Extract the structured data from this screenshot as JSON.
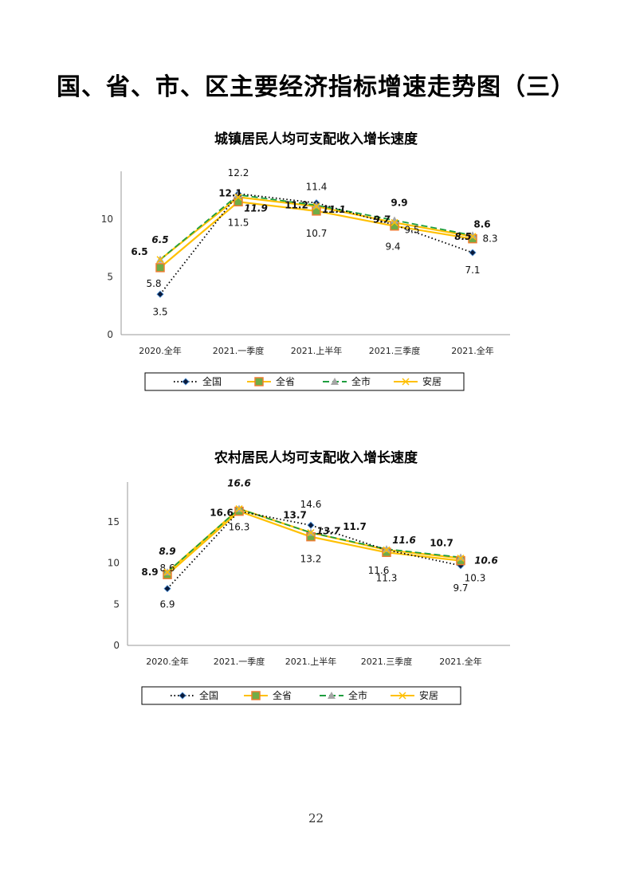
{
  "page_title": "国、省、市、区主要经济指标增速走势图（三）",
  "page_number": "22",
  "chart_data": [
    {
      "type": "line",
      "title": "城镇居民人均可支配收入增长速度",
      "categories": [
        "2020.全年",
        "2021.一季度",
        "2021.上半年",
        "2021.三季度",
        "2021.全年"
      ],
      "ylim": [
        0,
        13
      ],
      "yticks": [
        0,
        5,
        10
      ],
      "legend": "bottom",
      "series": [
        {
          "name": "全国",
          "color": "#000000",
          "style": "dotted",
          "marker": "diamond",
          "values": [
            3.5,
            12.2,
            11.4,
            9.5,
            7.1
          ],
          "labels": [
            "3.5",
            "12.2",
            "11.4",
            "9.5",
            "7.1"
          ],
          "label_style": "plain"
        },
        {
          "name": "全省",
          "color": "#F0A030",
          "style": "solid",
          "marker": "square",
          "values": [
            5.8,
            11.5,
            10.7,
            9.4,
            8.3
          ],
          "labels": [
            "5.8",
            "11.5",
            "10.7",
            "9.4",
            "8.3"
          ],
          "label_style": "plain"
        },
        {
          "name": "全市",
          "color": "#1E9E3E",
          "style": "dashed",
          "marker": "triangle",
          "values": [
            6.5,
            12.1,
            11.2,
            9.9,
            8.6
          ],
          "labels": [
            "6.5",
            "12.1",
            "11.2",
            "9.9",
            "8.6"
          ],
          "label_style": "bold"
        },
        {
          "name": "安居",
          "color": "#FFC000",
          "style": "solid",
          "marker": "x",
          "values": [
            6.5,
            11.9,
            11.1,
            9.7,
            8.5
          ],
          "labels": [
            "6.5",
            "11.9",
            "11.1",
            "9.7",
            "8.5"
          ],
          "label_style": "bolditalic"
        }
      ]
    },
    {
      "type": "line",
      "title": "农村居民人均可支配收入增长速度",
      "categories": [
        "2020.全年",
        "2021.一季度",
        "2021.上半年",
        "2021.三季度",
        "2021.全年"
      ],
      "ylim": [
        0,
        18
      ],
      "yticks": [
        0,
        5,
        10,
        15
      ],
      "legend": "bottom",
      "series": [
        {
          "name": "全国",
          "color": "#000000",
          "style": "dotted",
          "marker": "diamond",
          "values": [
            6.9,
            16.3,
            14.6,
            11.6,
            9.7
          ],
          "labels": [
            "6.9",
            "",
            "14.6",
            "11.6",
            "9.7"
          ],
          "label_style": "plain"
        },
        {
          "name": "全省",
          "color": "#F0A030",
          "style": "solid",
          "marker": "square",
          "values": [
            8.6,
            16.3,
            13.2,
            11.3,
            10.3
          ],
          "labels": [
            "8.6",
            "16.3",
            "13.2",
            "11.3",
            "10.3"
          ],
          "label_style": "plain"
        },
        {
          "name": "全市",
          "color": "#1E9E3E",
          "style": "dashed",
          "marker": "triangle",
          "values": [
            8.9,
            16.6,
            13.7,
            11.7,
            10.7
          ],
          "labels": [
            "8.9",
            "16.6",
            "13.7",
            "11.7",
            "10.7"
          ],
          "label_style": "bold"
        },
        {
          "name": "安居",
          "color": "#FFC000",
          "style": "solid",
          "marker": "x",
          "values": [
            8.9,
            16.6,
            13.7,
            11.6,
            10.6
          ],
          "labels": [
            "8.9",
            "16.6",
            "13.7",
            "11.6",
            "10.6"
          ],
          "label_style": "bolditalic"
        }
      ]
    }
  ]
}
